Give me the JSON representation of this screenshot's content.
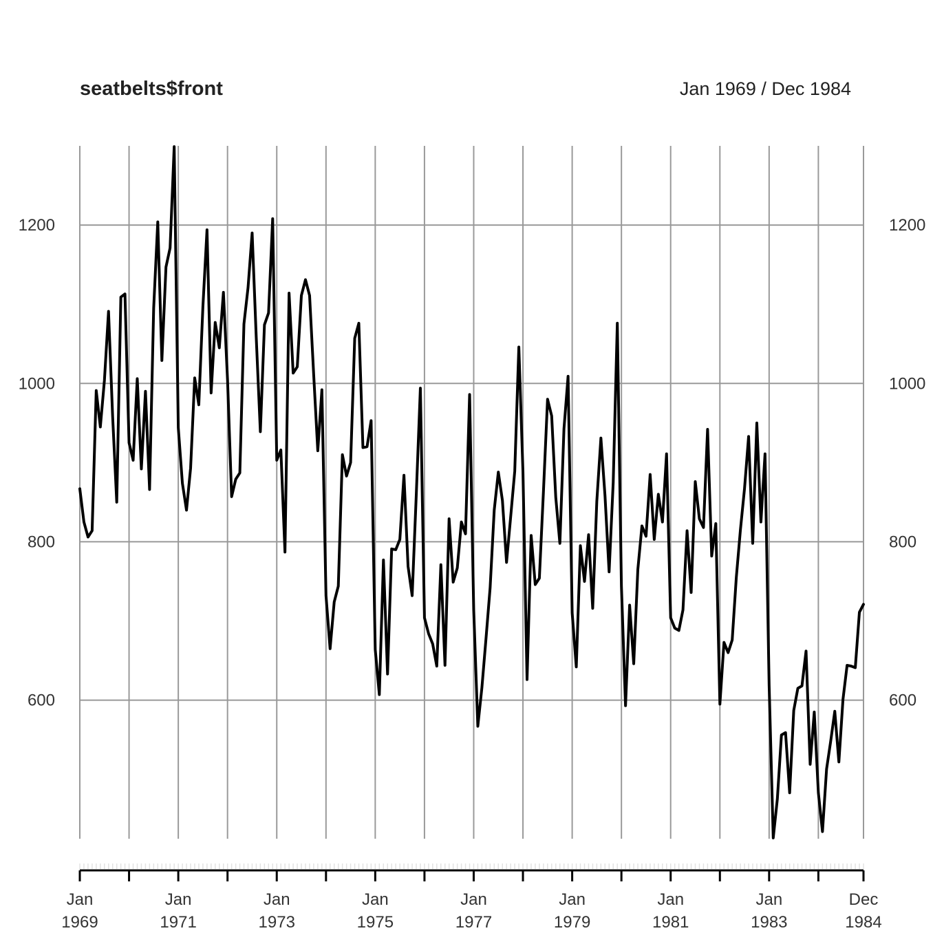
{
  "chart_data": {
    "type": "line",
    "title": "seatbelts$front",
    "date_range_label": "Jan 1969 / Dec 1984",
    "xlabel": "",
    "ylabel": "",
    "x_start": "1969-01",
    "x_end": "1984-12",
    "ylim": [
      425,
      1300
    ],
    "grid": true,
    "y_ticks": [
      {
        "value": 600,
        "label": "600"
      },
      {
        "value": 800,
        "label": "800"
      },
      {
        "value": 1000,
        "label": "1000"
      },
      {
        "value": 1200,
        "label": "1200"
      }
    ],
    "x_ticks": [
      {
        "month": "1969-01",
        "line1": "Jan",
        "line2": "1969"
      },
      {
        "month": "1971-01",
        "line1": "Jan",
        "line2": "1971"
      },
      {
        "month": "1973-01",
        "line1": "Jan",
        "line2": "1973"
      },
      {
        "month": "1975-01",
        "line1": "Jan",
        "line2": "1975"
      },
      {
        "month": "1977-01",
        "line1": "Jan",
        "line2": "1977"
      },
      {
        "month": "1979-01",
        "line1": "Jan",
        "line2": "1979"
      },
      {
        "month": "1981-01",
        "line1": "Jan",
        "line2": "1981"
      },
      {
        "month": "1983-01",
        "line1": "Jan",
        "line2": "1983"
      },
      {
        "month": "1984-12",
        "line1": "Dec",
        "line2": "1984"
      }
    ],
    "grid_months": [
      "1969-01",
      "1970-01",
      "1971-01",
      "1972-01",
      "1973-01",
      "1974-01",
      "1975-01",
      "1976-01",
      "1977-01",
      "1978-01",
      "1979-01",
      "1980-01",
      "1981-01",
      "1982-01",
      "1983-01",
      "1984-01",
      "1984-12"
    ],
    "series": [
      {
        "color": "#000000",
        "values": [
          867,
          825,
          806,
          814,
          991,
          945,
          1004,
          1091,
          958,
          850,
          1109,
          1113,
          925,
          903,
          1006,
          892,
          990,
          866,
          1095,
          1204,
          1029,
          1147,
          1171,
          1299,
          944,
          874,
          840,
          893,
          1007,
          973,
          1097,
          1194,
          988,
          1077,
          1045,
          1115,
          1005,
          857,
          879,
          887,
          1075,
          1121,
          1190,
          1058,
          939,
          1074,
          1089,
          1208,
          903,
          916,
          787,
          1114,
          1013,
          1021,
          1111,
          1131,
          1111,
          1011,
          915,
          992,
          732,
          665,
          724,
          744,
          910,
          883,
          900,
          1057,
          1076,
          919,
          920,
          953,
          664,
          607,
          777,
          633,
          791,
          790,
          803,
          884,
          769,
          732,
          859,
          994,
          704,
          684,
          671,
          643,
          771,
          644,
          829,
          749,
          767,
          825,
          810,
          986,
          714,
          567,
          616,
          678,
          742,
          840,
          888,
          852,
          774,
          831,
          889,
          1046,
          889,
          626,
          808,
          746,
          754,
          864,
          980,
          959,
          856,
          798,
          943,
          1009,
          710,
          642,
          795,
          750,
          809,
          716,
          851,
          931,
          858,
          762,
          875,
          1076,
          744,
          593,
          720,
          646,
          765,
          820,
          807,
          885,
          803,
          860,
          825,
          911,
          704,
          691,
          688,
          714,
          814,
          736,
          876,
          829,
          818,
          942,
          782,
          823,
          595,
          673,
          660,
          676,
          755,
          815,
          867,
          933,
          798,
          950,
          825,
          911,
          619,
          426,
          475,
          556,
          559,
          483,
          587,
          615,
          618,
          662,
          519,
          585,
          483,
          434,
          513,
          548,
          586,
          522,
          601,
          644,
          643,
          641,
          711,
          721
        ]
      }
    ]
  }
}
